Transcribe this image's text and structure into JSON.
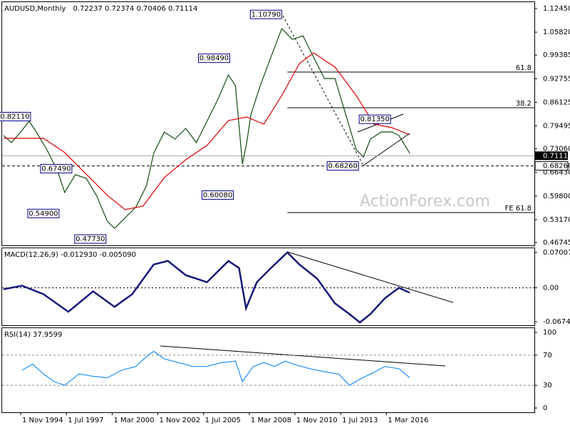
{
  "chart_data": [
    {
      "type": "line",
      "title": "AUDUSD,Monthly",
      "ohlc": "0.72237 0.72374 0.70406 0.71114",
      "watermark": "ActionForex.com",
      "xlim": [
        1993.75,
        2024.8
      ],
      "ylim": [
        0.4594,
        1.1425
      ],
      "yticks": [
        {
          "value": 1.1245,
          "label": "1.12450"
        },
        {
          "value": 1.0582,
          "label": "1.05820"
        },
        {
          "value": 0.99385,
          "label": "0.99385"
        },
        {
          "value": 0.92755,
          "label": "0.92755"
        },
        {
          "value": 0.86125,
          "label": "0.86125"
        },
        {
          "value": 0.79495,
          "label": "0.79495"
        },
        {
          "value": 0.7306,
          "label": "0.73060"
        },
        {
          "value": 0.6643,
          "label": "0.66430"
        },
        {
          "value": 0.598,
          "label": "0.59800"
        },
        {
          "value": 0.5317,
          "label": "0.53170"
        },
        {
          "value": 0.46745,
          "label": "0.46745"
        }
      ],
      "series": [
        {
          "name": "AUDUSD",
          "color": "#0f4d0f",
          "x": [
            1993.83,
            1994.29,
            1994.83,
            1995.33,
            1995.74,
            1996.36,
            1996.99,
            1997.4,
            1998.02,
            1998.65,
            1999.27,
            1999.89,
            2000.31,
            2000.93,
            2001.55,
            2002.17,
            2002.59,
            2003.21,
            2003.83,
            2004.46,
            2005.08,
            2005.7,
            2006.32,
            2006.95,
            2007.36,
            2007.77,
            2008.02,
            2008.27,
            2008.81,
            2009.43,
            2010.06,
            2010.68,
            2011.3,
            2011.92,
            2012.55,
            2013.17,
            2013.79,
            2014.41,
            2014.83,
            2015.24,
            2015.87,
            2016.49,
            2016.9,
            2017.53
          ],
          "values": [
            0.768,
            0.748,
            0.778,
            0.808,
            0.778,
            0.728,
            0.668,
            0.608,
            0.658,
            0.648,
            0.598,
            0.527,
            0.507,
            0.537,
            0.567,
            0.627,
            0.718,
            0.778,
            0.758,
            0.788,
            0.748,
            0.808,
            0.868,
            0.938,
            0.908,
            0.688,
            0.748,
            0.828,
            0.908,
            0.988,
            1.068,
            1.038,
            1.048,
            0.988,
            0.928,
            0.928,
            0.828,
            0.728,
            0.708,
            0.758,
            0.778,
            0.778,
            0.768,
            0.718
          ]
        },
        {
          "name": "MA",
          "color": "#e00000",
          "x": [
            1993.83,
            1994.83,
            1996.16,
            1997.4,
            1998.65,
            1999.89,
            2000.93,
            2001.97,
            2003.21,
            2004.46,
            2005.7,
            2006.95,
            2008.02,
            2009.02,
            2010.06,
            2011.09,
            2011.92,
            2013.17,
            2014.41,
            2015.45,
            2016.49,
            2017.53
          ],
          "values": [
            0.76,
            0.76,
            0.76,
            0.72,
            0.66,
            0.6,
            0.56,
            0.57,
            0.65,
            0.7,
            0.74,
            0.81,
            0.82,
            0.8,
            0.88,
            0.97,
            1.0,
            0.96,
            0.88,
            0.8,
            0.79,
            0.77
          ]
        }
      ],
      "annotations": [
        {
          "x": 2010.06,
          "y": 1.1079,
          "label": "1.10790"
        },
        {
          "x": 2007.03,
          "y": 0.9849,
          "label": "0.98490"
        },
        {
          "x": 1995.41,
          "y": 0.8211,
          "label": "0.82110"
        },
        {
          "x": 2016.41,
          "y": 0.8135,
          "label": "0.81350"
        },
        {
          "x": 2014.54,
          "y": 0.6826,
          "label": "0.68260"
        },
        {
          "x": 2007.24,
          "y": 0.6008,
          "label": "0.60080"
        },
        {
          "x": 1997.82,
          "y": 0.6749,
          "label": "0.67490"
        },
        {
          "x": 1997.07,
          "y": 0.549,
          "label": "0.54900"
        },
        {
          "x": 1999.81,
          "y": 0.4773,
          "label": "0.47730"
        }
      ],
      "levels": [
        {
          "label": "61.8",
          "value": 0.9462,
          "from": 2010.39
        },
        {
          "label": "38.2",
          "value": 0.846,
          "from": 2010.39
        },
        {
          "label": "FE 61.8",
          "value": 0.5516,
          "from": 2010.39
        }
      ],
      "current_price": {
        "value": 0.71114,
        "label": "0.71114"
      },
      "support_level": {
        "value": 0.6826,
        "label": "0.68260"
      }
    },
    {
      "type": "line",
      "title": "MACD(12,26,9) -0.012930 -0.005090",
      "xlim": [
        1993.75,
        2024.8
      ],
      "ylim": [
        -0.0743,
        0.0785
      ],
      "yticks": [
        0.070071,
        {
          "value": 0,
          "label": "0.00"
        },
        -0.067423
      ],
      "zero_line": true,
      "series": [
        {
          "name": "MACD",
          "color": "#14197a",
          "x": [
            1993.83,
            1994.91,
            1996.16,
            1997.61,
            1999.06,
            2000.31,
            2001.34,
            2002.59,
            2003.42,
            2004.46,
            2005.7,
            2006.95,
            2007.57,
            2007.98,
            2008.61,
            2009.43,
            2010.39,
            2011.09,
            2012.13,
            2013.17,
            2014.0,
            2014.62,
            2015.24,
            2016.07,
            2016.9,
            2017.53
          ],
          "values": [
            -0.0028,
            0.0042,
            -0.0126,
            -0.0476,
            -0.007,
            -0.0378,
            -0.0126,
            0.0462,
            0.0533,
            0.0252,
            0.0112,
            0.0533,
            0.0392,
            -0.0406,
            0.0112,
            0.0392,
            0.0701,
            0.0462,
            0.0182,
            -0.0308,
            -0.0518,
            -0.0686,
            -0.0518,
            -0.021,
            0,
            -0.0098
          ]
        }
      ]
    },
    {
      "type": "line",
      "title": "RSI(14) 37.9599",
      "xlim": [
        1993.75,
        2024.8
      ],
      "ylim": [
        -5.7,
        105.7
      ],
      "yticks": [
        100,
        70,
        30,
        0
      ],
      "level_lines": [
        70,
        30
      ],
      "xticks": [
        {
          "value": 1994.83,
          "label": "1 Nov 1994"
        },
        {
          "value": 1997.5,
          "label": "1 Jul 1997"
        },
        {
          "value": 2000.17,
          "label": "1 Mar 2000"
        },
        {
          "value": 2002.83,
          "label": "1 Nov 2002"
        },
        {
          "value": 2005.5,
          "label": "1 Jul 2005"
        },
        {
          "value": 2008.17,
          "label": "1 Mar 2008"
        },
        {
          "value": 2010.83,
          "label": "1 Nov 2010"
        },
        {
          "value": 2013.5,
          "label": "1 Jul 2013"
        },
        {
          "value": 2016.17,
          "label": "1 Mar 2016"
        }
      ],
      "series": [
        {
          "name": "RSI",
          "color": "#1e90ff",
          "x": [
            1994.91,
            1995.53,
            1996.16,
            1996.78,
            1997.4,
            1998.23,
            1999.06,
            1999.89,
            2000.72,
            2001.55,
            2002.17,
            2002.59,
            2003.21,
            2004.04,
            2004.87,
            2005.7,
            2006.53,
            2007.36,
            2007.77,
            2008.4,
            2009.02,
            2009.64,
            2010.26,
            2010.89,
            2011.72,
            2012.55,
            2013.38,
            2014.0,
            2014.62,
            2015.24,
            2016.07,
            2016.9,
            2017.53
          ],
          "values": [
            50,
            58,
            45,
            35,
            30,
            45,
            42,
            40,
            50,
            55,
            68,
            75,
            65,
            60,
            55,
            55,
            60,
            62,
            35,
            55,
            60,
            55,
            62,
            57,
            52,
            48,
            45,
            30,
            38,
            45,
            55,
            52,
            40
          ]
        }
      ]
    }
  ]
}
